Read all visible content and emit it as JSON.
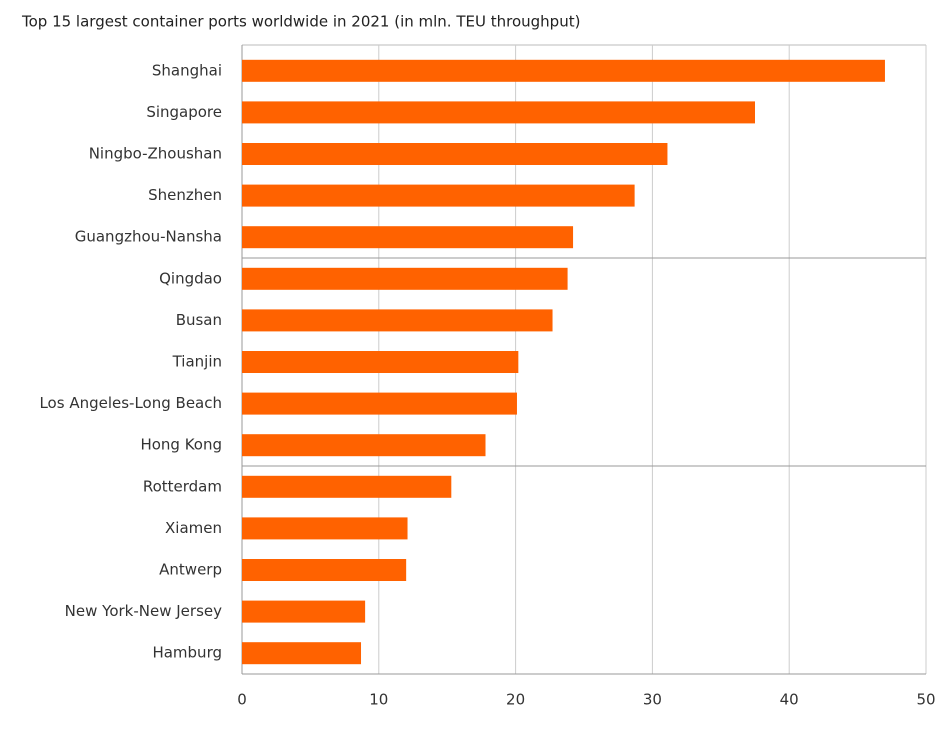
{
  "chart_data": {
    "type": "bar",
    "orientation": "horizontal",
    "title": "Top 15 largest container ports worldwide in 2021 (in mln. TEU throughput)",
    "categories": [
      "Shanghai",
      "Singapore",
      "Ningbo-Zhoushan",
      "Shenzhen",
      "Guangzhou-Nansha",
      "Qingdao",
      "Busan",
      "Tianjin",
      "Los Angeles-Long Beach",
      "Hong Kong",
      "Rotterdam",
      "Xiamen",
      "Antwerp",
      "New York-New Jersey",
      "Hamburg"
    ],
    "values": [
      47.0,
      37.5,
      31.1,
      28.7,
      24.2,
      23.8,
      22.7,
      20.2,
      20.1,
      17.8,
      15.3,
      12.1,
      12.0,
      9.0,
      8.7
    ],
    "color": "#ff6200",
    "xlim": [
      0,
      50
    ],
    "xticks": [
      0,
      10,
      20,
      30,
      40,
      50
    ],
    "grid": true
  }
}
